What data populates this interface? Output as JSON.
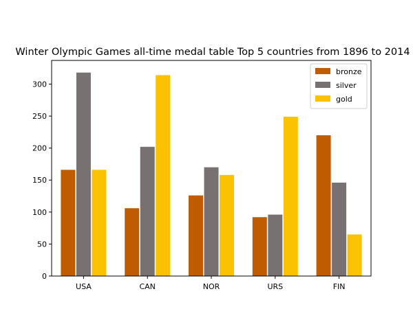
{
  "chart_data": {
    "type": "bar",
    "title": "Winter Olympic Games all-time medal table Top 5 countries from 1896 to 2014",
    "xlabel": "",
    "ylabel": "",
    "categories": [
      "USA",
      "CAN",
      "NOR",
      "URS",
      "FIN"
    ],
    "series": [
      {
        "name": "bronze",
        "color": "#bf5b00",
        "values": [
          166,
          106,
          126,
          92,
          220
        ]
      },
      {
        "name": "silver",
        "color": "#787171",
        "values": [
          318,
          202,
          170,
          96,
          146
        ]
      },
      {
        "name": "gold",
        "color": "#fac200",
        "values": [
          166,
          314,
          158,
          249,
          65
        ]
      }
    ],
    "ylim": [
      0,
      337
    ],
    "yticks": [
      0,
      50,
      100,
      150,
      200,
      250,
      300
    ],
    "grid": false,
    "legend": "top-right"
  }
}
